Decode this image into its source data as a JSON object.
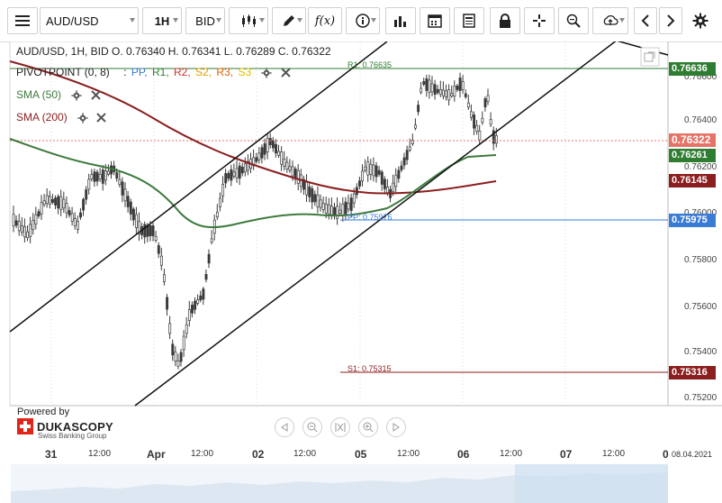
{
  "toolbar": {
    "symbol": "AUD/USD",
    "interval": "1H",
    "side": "BID",
    "icons": [
      "menu-icon",
      "candles-icon",
      "pencil-icon",
      "function-icon",
      "info-icon",
      "bars-icon",
      "calendar-icon",
      "notepad-icon",
      "lock-icon",
      "crosshair-icon",
      "zoom-icon",
      "upload-icon",
      "chevron-left-icon",
      "chevron-right-icon",
      "gear-icon"
    ]
  },
  "legend": {
    "ohlc": "AUD/USD, 1H, BID   O. 0.76340 H. 0.76341 L. 0.76289 C. 0.76322",
    "pivot_label": "PIVOTPOINT (0, 8)",
    "pivot_sep": ":",
    "pp": "PP,",
    "r1": "R1,",
    "r2": "R2,",
    "s2": "S2,",
    "r3": "R3,",
    "s3": "S3",
    "sma50": "SMA (50)",
    "sma200": "SMA (200)"
  },
  "levels": {
    "r1_label": "R1: 0.76635",
    "pp_label": "PP: 0.75976",
    "s1_label": "S1: 0.75315"
  },
  "price_tags": [
    {
      "value": "0.76636",
      "color": "#2e7d32"
    },
    {
      "value": "0.76322",
      "color": "#e57368"
    },
    {
      "value": "0.76261",
      "color": "#2e7d32"
    },
    {
      "value": "0.76145",
      "color": "#8b1e1e"
    },
    {
      "value": "0.75975",
      "color": "#3a7bd5"
    },
    {
      "value": "0.75316",
      "color": "#8b1e1e"
    }
  ],
  "y_axis": [
    "0.76600",
    "0.76400",
    "0.76200",
    "0.76000",
    "0.75800",
    "0.75600",
    "0.75400",
    "0.75200"
  ],
  "x_axis": [
    {
      "label": "31",
      "big": true
    },
    {
      "label": "12:00",
      "big": false
    },
    {
      "label": "Apr",
      "big": true
    },
    {
      "label": "12:00",
      "big": false
    },
    {
      "label": "02",
      "big": true
    },
    {
      "label": "12:00",
      "big": false
    },
    {
      "label": "05",
      "big": true
    },
    {
      "label": "12:00",
      "big": false
    },
    {
      "label": "06",
      "big": true
    },
    {
      "label": "12:00",
      "big": false
    },
    {
      "label": "07",
      "big": true
    },
    {
      "label": "12:00",
      "big": false
    },
    {
      "label": "0",
      "big": true
    }
  ],
  "end_date": "08.04.2021",
  "branding": {
    "powered": "Powered by",
    "name": "DUKASCOPY",
    "sub": "Swiss Banking Group"
  },
  "colors": {
    "sma50": "#3d7a3d",
    "sma200": "#8b1e1e",
    "r1": "#2e7d32",
    "pp": "#3a7bd5",
    "s1": "#8b1e1e",
    "candle": "#3a3a3a"
  }
}
